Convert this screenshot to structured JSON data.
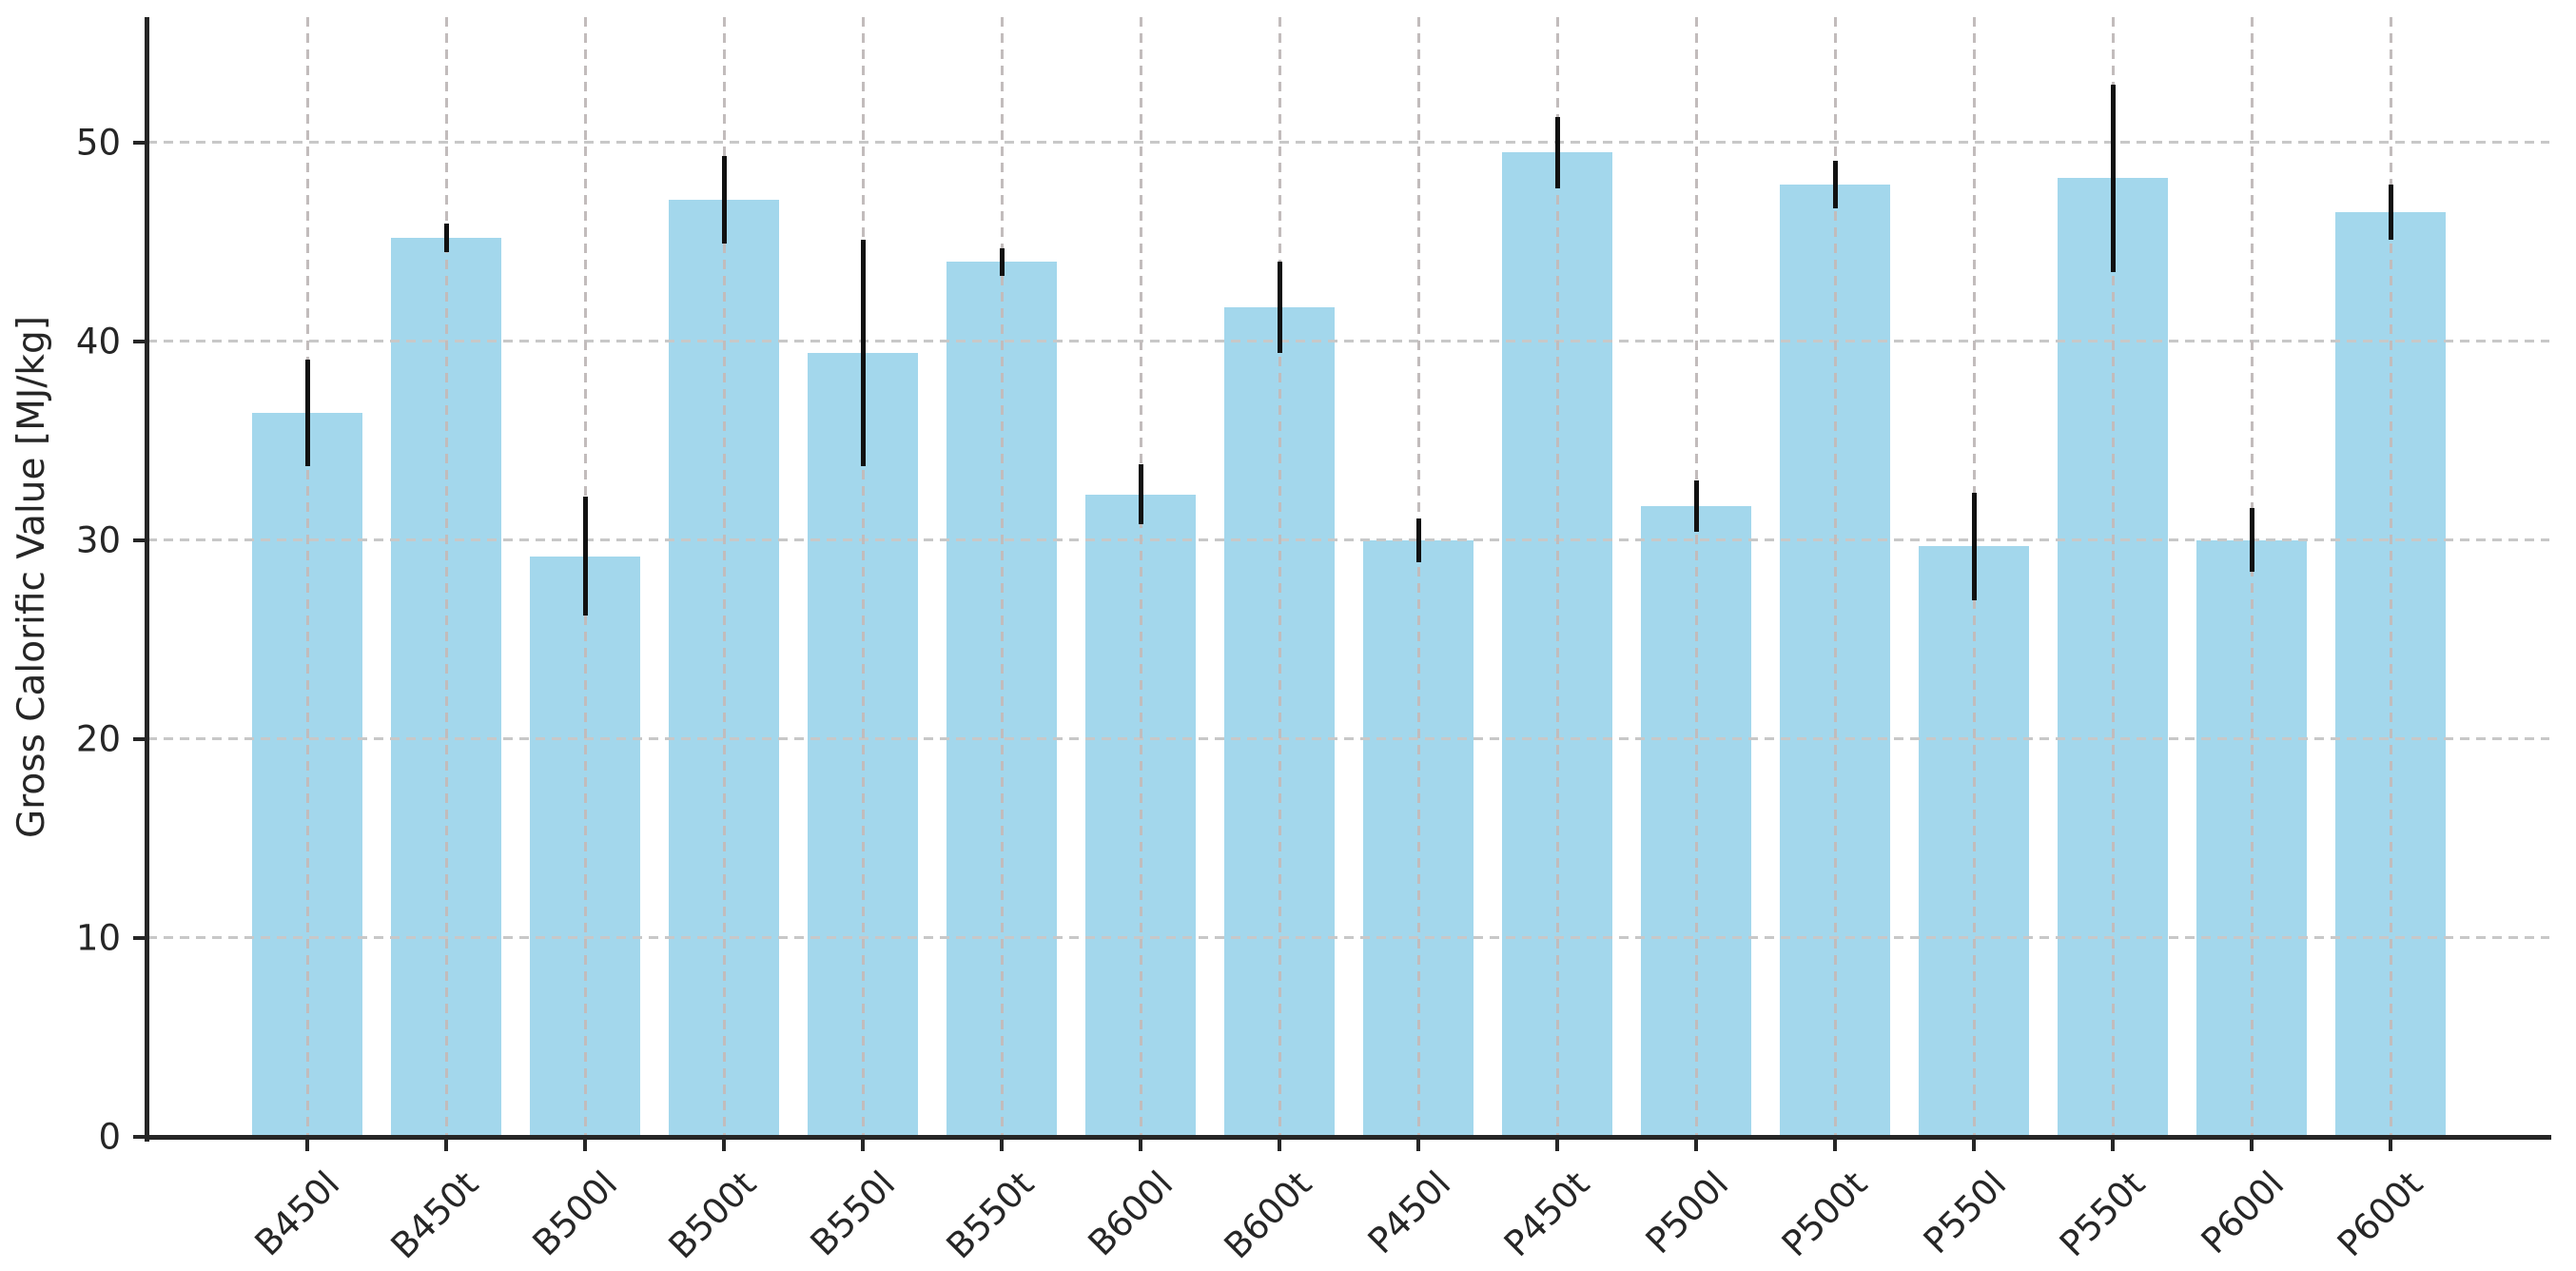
{
  "chart_data": {
    "type": "bar",
    "title": "",
    "xlabel": "",
    "ylabel": "Gross Calorific Value [MJ/kg]",
    "categories": [
      "B450l",
      "B450t",
      "B500l",
      "B500t",
      "B550l",
      "B550t",
      "B600l",
      "B600t",
      "P450l",
      "P450t",
      "P500l",
      "P500t",
      "P550l",
      "P550t",
      "P600l",
      "P600t"
    ],
    "values": [
      36.4,
      45.2,
      29.2,
      47.1,
      39.4,
      44.0,
      32.3,
      41.7,
      30.0,
      49.5,
      31.7,
      47.9,
      29.7,
      48.2,
      30.0,
      46.5
    ],
    "errors": [
      2.7,
      0.7,
      3.0,
      2.2,
      5.7,
      0.7,
      1.5,
      2.3,
      1.1,
      1.8,
      1.3,
      1.2,
      2.7,
      4.7,
      1.6,
      1.4
    ],
    "yticks": [
      0,
      10,
      20,
      30,
      40,
      50
    ],
    "ylim": [
      0,
      56.3
    ],
    "grid": "dashed horizontal and vertical",
    "legend": "none",
    "error_bar_style": "vertical line, no caps",
    "bar_color": "#a3d7ec",
    "error_color": "#111111",
    "axis_color": "#262626",
    "grid_color": "#c8c8c8",
    "background_color": "#ffffff"
  }
}
